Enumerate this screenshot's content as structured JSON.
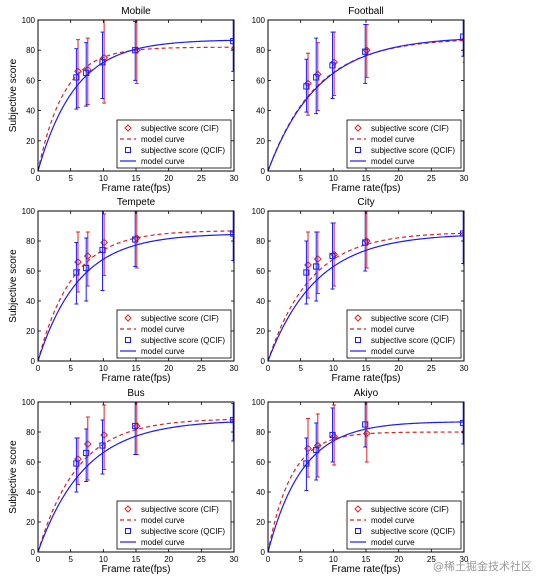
{
  "legend_labels": {
    "cif_score": "subjective score (CIF)",
    "cif_model": "model curve",
    "qcif_score": "subjective score (QCIF)",
    "qcif_model": "model curve"
  },
  "colors": {
    "cif": "#dd2222",
    "qcif": "#1a1aff",
    "axis": "#000000"
  },
  "watermark": "@稀土掘金技术社区",
  "chart_data": [
    {
      "type": "line",
      "title": "Mobile",
      "xlabel": "Frame rate(fps)",
      "ylabel": "Subjective score",
      "xlim": [
        0,
        30
      ],
      "ylim": [
        0,
        100
      ],
      "xticks": [
        0,
        5,
        10,
        15,
        20,
        25,
        30
      ],
      "yticks": [
        0,
        20,
        40,
        60,
        80,
        100
      ],
      "legend_position": "bottom-right",
      "series": [
        {
          "key": "cif",
          "x": [
            6,
            7.5,
            10,
            15,
            30
          ],
          "y": [
            66,
            67,
            75,
            80,
            81
          ],
          "err_low": [
            42,
            44,
            45,
            58,
            60
          ],
          "err_high": [
            87,
            88,
            100,
            100,
            100
          ],
          "model": [
            82,
            0.25
          ]
        },
        {
          "key": "qcif",
          "x": [
            6,
            7.5,
            10,
            15,
            30
          ],
          "y": [
            62,
            65,
            72,
            80,
            86
          ],
          "err_low": [
            41,
            43,
            48,
            60,
            66
          ],
          "err_high": [
            81,
            85,
            92,
            99,
            100
          ],
          "model": [
            87,
            0.175
          ]
        }
      ]
    },
    {
      "type": "line",
      "title": "Football",
      "xlabel": "Frame rate(fps)",
      "ylabel": "",
      "xlim": [
        0,
        30
      ],
      "ylim": [
        0,
        100
      ],
      "xticks": [
        0,
        5,
        10,
        15,
        20,
        25,
        30
      ],
      "yticks": [
        0,
        20,
        40,
        60,
        80,
        100
      ],
      "legend_position": "bottom-right",
      "series": [
        {
          "key": "cif",
          "x": [
            6,
            7.5,
            10,
            15,
            30
          ],
          "y": [
            58,
            64,
            72,
            80,
            87
          ],
          "err_low": [
            37,
            40,
            50,
            62,
            72
          ],
          "err_high": [
            78,
            85,
            92,
            97,
            98
          ],
          "model": [
            88,
            0.135
          ]
        },
        {
          "key": "qcif",
          "x": [
            6,
            7.5,
            10,
            15,
            30
          ],
          "y": [
            56,
            62,
            70,
            79,
            89
          ],
          "err_low": [
            39,
            38,
            48,
            58,
            76
          ],
          "err_high": [
            74,
            88,
            92,
            97,
            100
          ],
          "model": [
            89,
            0.13
          ]
        }
      ]
    },
    {
      "type": "line",
      "title": "Tempete",
      "xlabel": "Frame rate(fps)",
      "ylabel": "Subjective score",
      "xlim": [
        0,
        30
      ],
      "ylim": [
        0,
        100
      ],
      "xticks": [
        0,
        5,
        10,
        15,
        20,
        25,
        30
      ],
      "yticks": [
        0,
        20,
        40,
        60,
        80,
        100
      ],
      "legend_position": "bottom-right",
      "series": [
        {
          "key": "cif",
          "x": [
            6,
            7.5,
            10,
            15,
            30
          ],
          "y": [
            66,
            70,
            79,
            82,
            86
          ],
          "err_low": [
            46,
            50,
            57,
            62,
            66
          ],
          "err_high": [
            86,
            86,
            98,
            100,
            100
          ],
          "model": [
            87,
            0.19
          ]
        },
        {
          "key": "qcif",
          "x": [
            6,
            7.5,
            10,
            15,
            30
          ],
          "y": [
            59,
            62,
            74,
            81,
            85
          ],
          "err_low": [
            38,
            40,
            47,
            63,
            67
          ],
          "err_high": [
            79,
            82,
            100,
            100,
            100
          ],
          "model": [
            85,
            0.16
          ]
        }
      ]
    },
    {
      "type": "line",
      "title": "City",
      "xlabel": "Frame rate(fps)",
      "ylabel": "",
      "xlim": [
        0,
        30
      ],
      "ylim": [
        0,
        100
      ],
      "xticks": [
        0,
        5,
        10,
        15,
        20,
        25,
        30
      ],
      "yticks": [
        0,
        20,
        40,
        60,
        80,
        100
      ],
      "legend_position": "bottom-right",
      "series": [
        {
          "key": "cif",
          "x": [
            6,
            7.5,
            10,
            15,
            30
          ],
          "y": [
            64,
            68,
            71,
            80,
            85
          ],
          "err_low": [
            42,
            45,
            50,
            62,
            64
          ],
          "err_high": [
            86,
            86,
            92,
            100,
            100
          ],
          "model": [
            86,
            0.155
          ]
        },
        {
          "key": "qcif",
          "x": [
            6,
            7.5,
            10,
            15,
            30
          ],
          "y": [
            59,
            63,
            70,
            79,
            85
          ],
          "err_low": [
            38,
            40,
            48,
            60,
            65
          ],
          "err_high": [
            80,
            86,
            92,
            100,
            100
          ],
          "model": [
            85,
            0.135
          ]
        }
      ]
    },
    {
      "type": "line",
      "title": "Bus",
      "xlabel": "Frame rate(fps)",
      "ylabel": "Subjective score",
      "xlim": [
        0,
        30
      ],
      "ylim": [
        0,
        100
      ],
      "xticks": [
        0,
        5,
        10,
        15,
        20,
        25,
        30
      ],
      "yticks": [
        0,
        20,
        40,
        60,
        80,
        100
      ],
      "legend_position": "bottom-right",
      "series": [
        {
          "key": "cif",
          "x": [
            6,
            7.5,
            10,
            15,
            30
          ],
          "y": [
            62,
            72,
            78,
            84,
            88
          ],
          "err_low": [
            45,
            48,
            55,
            65,
            75
          ],
          "err_high": [
            76,
            90,
            98,
            100,
            100
          ],
          "model": [
            89,
            0.165
          ]
        },
        {
          "key": "qcif",
          "x": [
            6,
            7.5,
            10,
            15,
            30
          ],
          "y": [
            59,
            66,
            71,
            84,
            88
          ],
          "err_low": [
            40,
            47,
            52,
            65,
            74
          ],
          "err_high": [
            76,
            82,
            88,
            100,
            99
          ],
          "model": [
            88,
            0.14
          ]
        }
      ]
    },
    {
      "type": "line",
      "title": "Akiyo",
      "xlabel": "Frame rate(fps)",
      "ylabel": "",
      "xlim": [
        0,
        30
      ],
      "ylim": [
        0,
        100
      ],
      "xticks": [
        0,
        5,
        10,
        15,
        20,
        25,
        30
      ],
      "yticks": [
        0,
        20,
        40,
        60,
        80,
        100
      ],
      "legend_position": "bottom-right",
      "series": [
        {
          "key": "cif",
          "x": [
            6,
            7.5,
            10,
            15,
            30
          ],
          "y": [
            69,
            71,
            77,
            79,
            80
          ],
          "err_low": [
            50,
            50,
            58,
            60,
            58
          ],
          "err_high": [
            89,
            92,
            98,
            100,
            100
          ],
          "model": [
            80,
            0.28
          ]
        },
        {
          "key": "qcif",
          "x": [
            6,
            7.5,
            10,
            15,
            30
          ],
          "y": [
            59,
            68,
            78,
            85,
            86
          ],
          "err_low": [
            41,
            48,
            60,
            70,
            72
          ],
          "err_high": [
            76,
            86,
            96,
            100,
            100
          ],
          "model": [
            87,
            0.19
          ]
        }
      ]
    }
  ]
}
